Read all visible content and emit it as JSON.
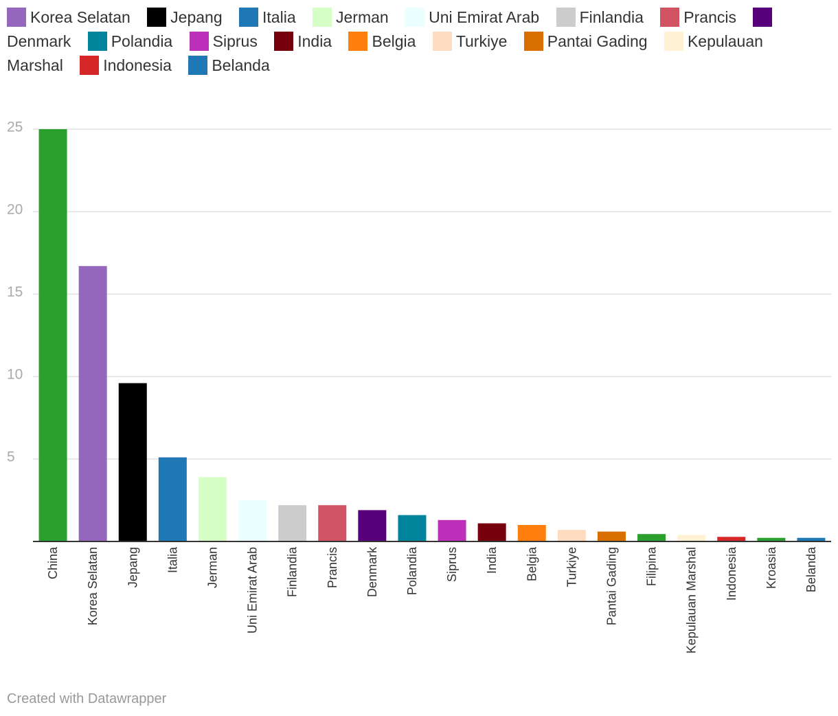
{
  "legend": {
    "items": [
      {
        "label": "Korea Selatan",
        "color": "#9467bd"
      },
      {
        "label": "Jepang",
        "color": "#000000"
      },
      {
        "label": "Italia",
        "color": "#1f77b4"
      },
      {
        "label": "Jerman",
        "color": "#d5ffc6"
      },
      {
        "label": "Uni Emirat Arab",
        "color": "#eafffe"
      },
      {
        "label": "Finlandia",
        "color": "#cccccc"
      },
      {
        "label": "Prancis",
        "color": "#d05463"
      },
      {
        "label": "Denmark",
        "color": "#58007b"
      },
      {
        "label": "Polandia",
        "color": "#00849b"
      },
      {
        "label": "Siprus",
        "color": "#bc2fb8"
      },
      {
        "label": "India",
        "color": "#76000b"
      },
      {
        "label": "Belgia",
        "color": "#ff7f0e"
      },
      {
        "label": "Turkiye",
        "color": "#ffdbbf"
      },
      {
        "label": "Pantai Gading",
        "color": "#d86f00"
      },
      {
        "label": "Kepulauan Marshal",
        "color": "#fff1d3"
      },
      {
        "label": "Indonesia",
        "color": "#d62728"
      },
      {
        "label": "Belanda",
        "color": "#1f77b4"
      }
    ]
  },
  "chart_data": {
    "type": "bar",
    "title": "",
    "xlabel": "",
    "ylabel": "",
    "ylim": [
      0,
      25
    ],
    "yticks": [
      5,
      10,
      15,
      20,
      25
    ],
    "grid": true,
    "categories": [
      "China",
      "Korea Selatan",
      "Jepang",
      "Italia",
      "Jerman",
      "Uni Emirat Arab",
      "Finlandia",
      "Prancis",
      "Denmark",
      "Polandia",
      "Siprus",
      "India",
      "Belgia",
      "Turkiye",
      "Pantai Gading",
      "Filipina",
      "Kepulauan Marshal",
      "Indonesia",
      "Kroasia",
      "Belanda"
    ],
    "values": [
      25.0,
      16.7,
      9.6,
      5.1,
      3.9,
      2.5,
      2.2,
      2.2,
      1.9,
      1.6,
      1.3,
      1.1,
      1.0,
      0.7,
      0.6,
      0.45,
      0.4,
      0.28,
      0.22,
      0.22
    ],
    "colors": [
      "#2ca02c",
      "#9467bd",
      "#000000",
      "#1f77b4",
      "#d5ffc6",
      "#eafffe",
      "#cccccc",
      "#d05463",
      "#58007b",
      "#00849b",
      "#bc2fb8",
      "#76000b",
      "#ff7f0e",
      "#ffdbbf",
      "#d86f00",
      "#2ca02c",
      "#fff1d3",
      "#d62728",
      "#2ca02c",
      "#1f77b4"
    ]
  },
  "footer": {
    "credit": "Created with Datawrapper"
  }
}
